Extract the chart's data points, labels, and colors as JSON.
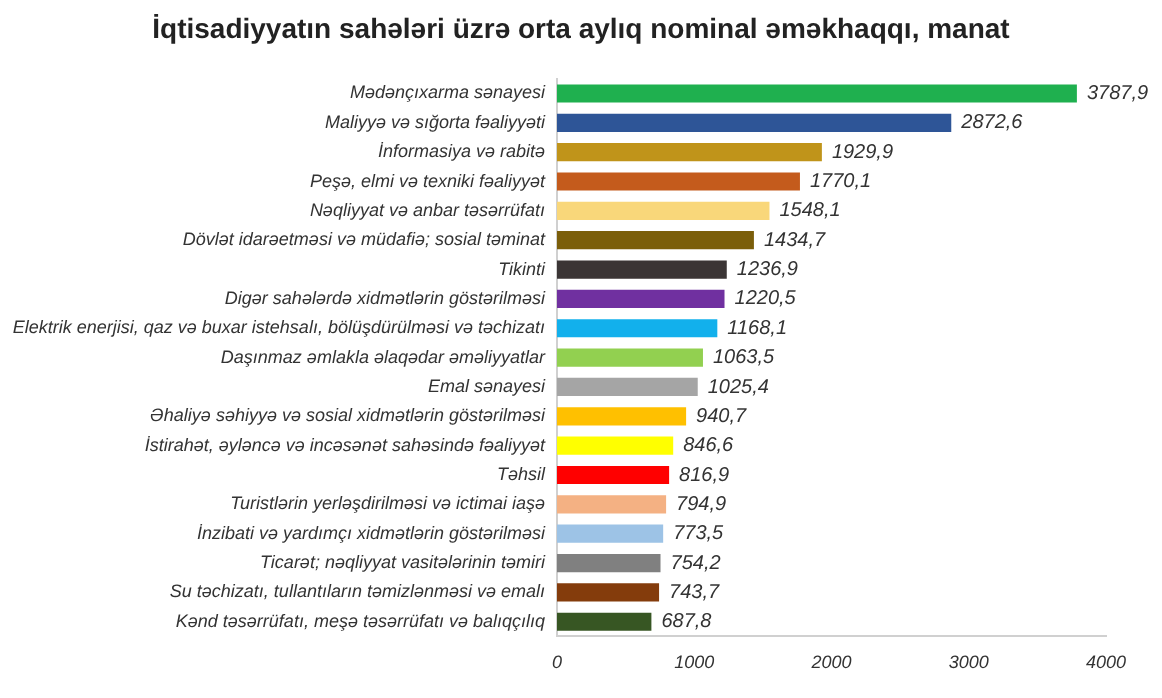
{
  "chart_data": {
    "type": "bar",
    "orientation": "horizontal",
    "title": "İqtisadiyyatın sahələri üzrə orta aylıq nominal əməkhaqqı, manat",
    "categories": [
      "Mədənçıxarma sənayesi",
      "Maliyyə və sığorta fəaliyyəti",
      "İnformasiya və rabitə",
      "Peşə, elmi və texniki fəaliyyət",
      "Nəqliyyat və anbar təsərrüfatı",
      "Dövlət idarəetməsi və müdafiə; sosial təminat",
      "Tikinti",
      "Digər sahələrdə xidmətlərin göstərilməsi",
      "Elektrik enerjisi, qaz və buxar istehsalı, bölüşdürülməsi və təchizatı",
      "Daşınmaz əmlakla əlaqədar əməliyyatlar",
      "Emal sənayesi",
      "Əhaliyə səhiyyə və sosial xidmətlərin göstərilməsi",
      "İstirahət, əyləncə və incəsənət sahəsində fəaliyyət",
      "Təhsil",
      "Turistlərin yerləşdirilməsi və ictimai iaşə",
      "İnzibati və yardımçı xidmətlərin göstərilməsi",
      "Ticarət; nəqliyyat vasitələrinin təmiri",
      "Su təchizatı, tullantıların təmizlənməsi və emalı",
      "Kənd təsərrüfatı, meşə təsərrüfatı və balıqçılıq"
    ],
    "values": [
      3787.9,
      2872.6,
      1929.9,
      1770.1,
      1548.1,
      1434.7,
      1236.9,
      1220.5,
      1168.1,
      1063.5,
      1025.4,
      940.7,
      846.6,
      816.9,
      794.9,
      773.5,
      754.2,
      743.7,
      687.8
    ],
    "value_labels": [
      "3787,9",
      "2872,6",
      "1929,9",
      "1770,1",
      "1548,1",
      "1434,7",
      "1236,9",
      "1220,5",
      "1168,1",
      "1063,5",
      "1025,4",
      "940,7",
      "846,6",
      "816,9",
      "794,9",
      "773,5",
      "754,2",
      "743,7",
      "687,8"
    ],
    "colors": [
      "#1fb04f",
      "#2e5597",
      "#c0941a",
      "#c45b1c",
      "#f9d77a",
      "#7b5e0a",
      "#3b3535",
      "#7030a0",
      "#12b0ec",
      "#92d050",
      "#a5a5a5",
      "#ffc000",
      "#ffff00",
      "#ff0000",
      "#f4b183",
      "#9dc3e6",
      "#808080",
      "#843c0c",
      "#375623"
    ],
    "xlim": [
      0,
      4000
    ],
    "xticks": [
      0,
      1000,
      2000,
      3000,
      4000
    ],
    "grid": false,
    "legend": false
  }
}
